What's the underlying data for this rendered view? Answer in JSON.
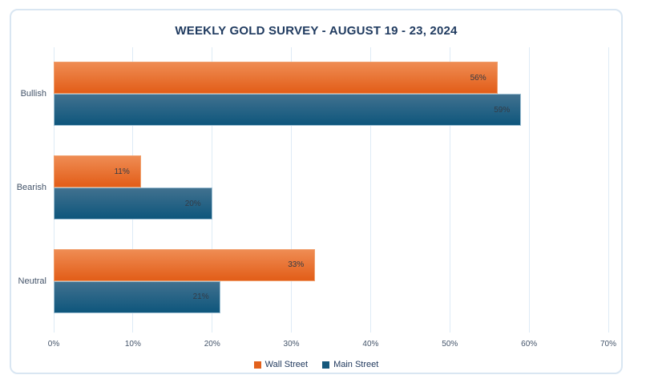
{
  "colors": {
    "background": "#FFFFFF",
    "card_border": "#D9E6F2",
    "grid": "#DEEBF6",
    "title": "#1F3A5F",
    "axis_text": "#44546A",
    "value_label": "#333B46",
    "legend_text": "#223A5E"
  },
  "chart_data": {
    "type": "bar",
    "orientation": "horizontal",
    "title": "WEEKLY GOLD SURVEY - AUGUST 19 - 23, 2024",
    "categories": [
      "Bullish",
      "Bearish",
      "Neutral"
    ],
    "series": [
      {
        "name": "Wall Street",
        "values": [
          56,
          11,
          33
        ],
        "color": "#E2611C",
        "gradient_top": "#EF8C53",
        "gradient_bottom": "#E25D18",
        "edge": "#F09E6B"
      },
      {
        "name": "Main Street",
        "values": [
          59,
          20,
          21
        ],
        "color": "#15587C",
        "gradient_top": "#41718F",
        "gradient_bottom": "#0E567C",
        "edge": "#9DBFD3"
      }
    ],
    "value_suffix": "%",
    "xlim": [
      0,
      70
    ],
    "x_ticks": [
      "0%",
      "10%",
      "20%",
      "30%",
      "40%",
      "50%",
      "60%",
      "70%"
    ],
    "grid": true,
    "legend_position": "bottom"
  }
}
